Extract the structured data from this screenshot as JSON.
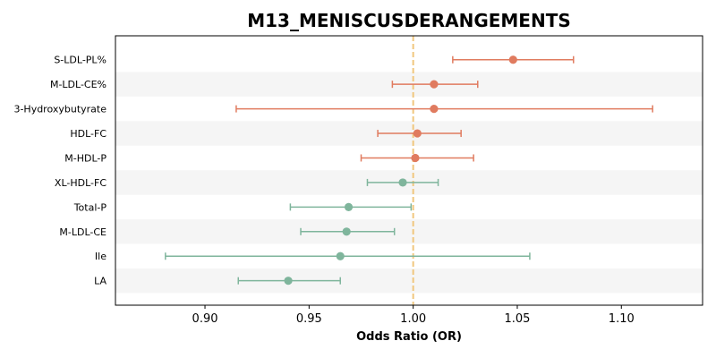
{
  "chart_data": {
    "type": "forest",
    "title": "M13_MENISCUSDERANGEMENTS",
    "xlabel": "Odds Ratio (OR)",
    "ylabel": "",
    "xlim": [
      0.857,
      1.139
    ],
    "xticks": [
      "0.90",
      "0.95",
      "1.00",
      "1.05",
      "1.10"
    ],
    "xtick_values": [
      0.9,
      0.95,
      1.0,
      1.05,
      1.1
    ],
    "reference_line": 1.0,
    "grid": false,
    "colors": {
      "positive": "#e07b5f",
      "negative": "#7fb59c",
      "reference": "#f0c77e",
      "band": "#f5f5f5"
    },
    "rows": [
      {
        "label": "S-LDL-PL%",
        "or": 1.048,
        "lower": 1.019,
        "upper": 1.077
      },
      {
        "label": "M-LDL-CE%",
        "or": 1.01,
        "lower": 0.99,
        "upper": 1.031
      },
      {
        "label": "3-Hydroxybutyrate",
        "or": 1.01,
        "lower": 0.915,
        "upper": 1.115
      },
      {
        "label": "HDL-FC",
        "or": 1.002,
        "lower": 0.983,
        "upper": 1.023
      },
      {
        "label": "M-HDL-P",
        "or": 1.001,
        "lower": 0.975,
        "upper": 1.029
      },
      {
        "label": "XL-HDL-FC",
        "or": 0.995,
        "lower": 0.978,
        "upper": 1.012
      },
      {
        "label": "Total-P",
        "or": 0.969,
        "lower": 0.941,
        "upper": 0.999
      },
      {
        "label": "M-LDL-CE",
        "or": 0.968,
        "lower": 0.946,
        "upper": 0.991
      },
      {
        "label": "Ile",
        "or": 0.965,
        "lower": 0.881,
        "upper": 1.056
      },
      {
        "label": "LA",
        "or": 0.94,
        "lower": 0.916,
        "upper": 0.965
      }
    ]
  }
}
